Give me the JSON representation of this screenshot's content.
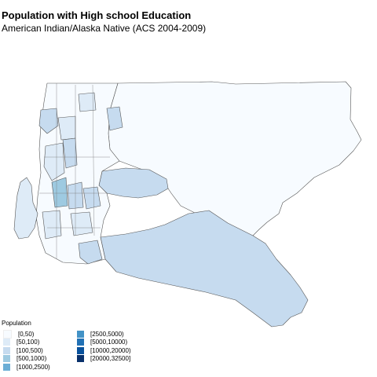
{
  "title": "Population with High school Education",
  "subtitle": "American Indian/Alaska Native (ACS 2004-2009)",
  "legend": {
    "title": "Population",
    "items": [
      {
        "label": "[0,50)",
        "color": "#f7fbff"
      },
      {
        "label": "[50,100)",
        "color": "#deebf7"
      },
      {
        "label": "[100,500)",
        "color": "#c6dbef"
      },
      {
        "label": "[500,1000)",
        "color": "#9ecae1"
      },
      {
        "label": "[1000,2500)",
        "color": "#6baed6"
      },
      {
        "label": "[2500,5000)",
        "color": "#4292c6"
      },
      {
        "label": "[5000,10000)",
        "color": "#2171b5"
      },
      {
        "label": "[10000,20000)",
        "color": "#08519c"
      },
      {
        "label": "[20000,32500]",
        "color": "#08306b"
      }
    ]
  },
  "regions": [
    {
      "name": "northeast-tract",
      "category": "[0,50)"
    },
    {
      "name": "southeast-tract",
      "category": "[100,500)"
    },
    {
      "name": "central-east-tract",
      "category": "[50,100)"
    },
    {
      "name": "island-tract",
      "category": "[50,100)"
    },
    {
      "name": "west-tract-a",
      "category": "[500,1000)"
    },
    {
      "name": "west-tract-b",
      "category": "[100,500)"
    },
    {
      "name": "south-tract",
      "category": "[500,1000)"
    }
  ]
}
